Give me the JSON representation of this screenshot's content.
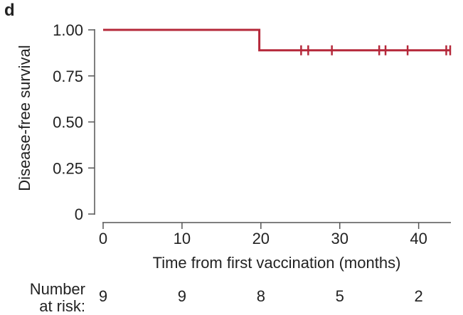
{
  "panel_label": "d",
  "chart_data": {
    "type": "line",
    "subtype": "kaplan-meier",
    "xlabel": "Time from first vaccination (months)",
    "ylabel": "Disease-free survival",
    "xlim": [
      0,
      44
    ],
    "ylim": [
      0,
      1
    ],
    "x_ticks": [
      0,
      10,
      20,
      30,
      40
    ],
    "y_ticks": [
      0,
      0.25,
      0.5,
      0.75,
      1.0
    ],
    "y_tick_labels": [
      "0",
      "0.25",
      "0.50",
      "0.75",
      "1.00"
    ],
    "grid": false,
    "series": [
      {
        "color": "#b5283a",
        "steps": [
          {
            "x": 0,
            "y": 1.0
          },
          {
            "x": 19.8,
            "y": 1.0
          },
          {
            "x": 19.8,
            "y": 0.889
          },
          {
            "x": 44,
            "y": 0.889
          }
        ],
        "censored": [
          25.1,
          26.0,
          29.0,
          35.0,
          35.8,
          38.6,
          43.5,
          44.0
        ]
      }
    ],
    "risk_table": {
      "label_line1": "Number",
      "label_line2": "at risk:",
      "times": [
        0,
        10,
        20,
        30,
        40
      ],
      "values": [
        "9",
        "9",
        "8",
        "5",
        "2"
      ]
    }
  }
}
